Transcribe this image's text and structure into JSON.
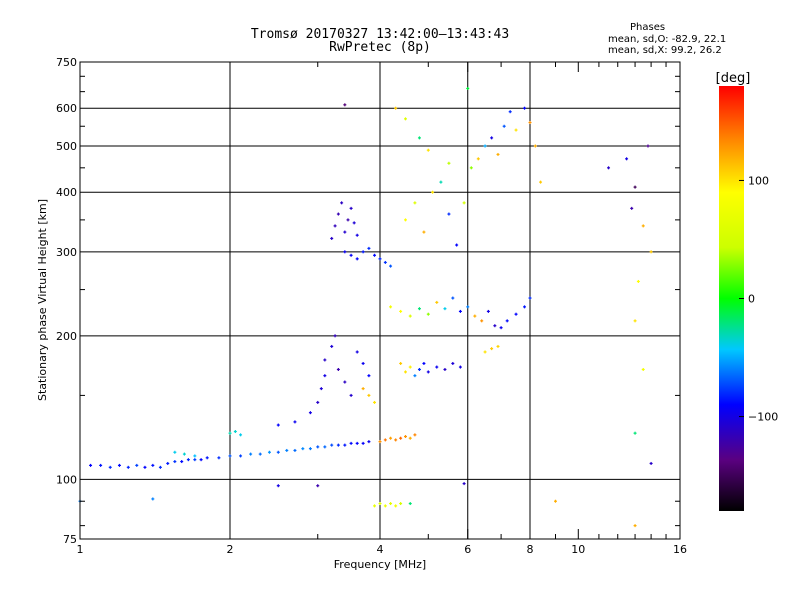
{
  "chart_data": {
    "type": "scatter",
    "title": "Tromsø 20170327 13:42:00–13:43:43",
    "subtitle": "RwPretec (8p)",
    "xlabel": "Frequency [MHz]",
    "ylabel": "Stationary phase Virtual Height [km]",
    "x_scale": "log",
    "y_scale": "log",
    "xlim": [
      1,
      16
    ],
    "ylim": [
      75,
      750
    ],
    "x_ticks": [
      1,
      2,
      4,
      6,
      8,
      10,
      16
    ],
    "x_tick_labels": [
      "1",
      "2",
      "4",
      "6",
      "8",
      "10",
      "16"
    ],
    "y_ticks": [
      75,
      100,
      200,
      300,
      400,
      500,
      600,
      750
    ],
    "y_tick_labels": [
      "75",
      "100",
      "200",
      "300",
      "400",
      "500",
      "600",
      "750"
    ],
    "grid": true,
    "stats": {
      "heading": "Phases",
      "line1": "mean, sd,O: -82.9, 22.1",
      "line2": "mean, sd,X:  99.2, 26.2"
    },
    "colorbar": {
      "label": "[deg]",
      "range": [
        -180,
        180
      ],
      "ticks": [
        -100,
        0,
        100
      ],
      "tick_labels": [
        "−100",
        "0",
        "100"
      ]
    },
    "series": [
      {
        "values": [
          {
            "x": 1.05,
            "y": 107,
            "phase": -90
          },
          {
            "x": 1.1,
            "y": 107,
            "phase": -85
          },
          {
            "x": 1.15,
            "y": 106,
            "phase": -80
          },
          {
            "x": 1.2,
            "y": 107,
            "phase": -88
          },
          {
            "x": 1.25,
            "y": 106,
            "phase": -82
          },
          {
            "x": 1.3,
            "y": 107,
            "phase": -75
          },
          {
            "x": 1.35,
            "y": 106,
            "phase": -90
          },
          {
            "x": 1.4,
            "y": 107,
            "phase": -86
          },
          {
            "x": 1.45,
            "y": 106,
            "phase": -80
          },
          {
            "x": 1.5,
            "y": 108,
            "phase": -84
          },
          {
            "x": 1.55,
            "y": 109,
            "phase": -78
          },
          {
            "x": 1.6,
            "y": 109,
            "phase": -88
          },
          {
            "x": 1.65,
            "y": 110,
            "phase": -82
          },
          {
            "x": 1.7,
            "y": 110,
            "phase": -76
          },
          {
            "x": 1.75,
            "y": 110,
            "phase": -90
          },
          {
            "x": 1.8,
            "y": 111,
            "phase": -85
          },
          {
            "x": 1.9,
            "y": 111,
            "phase": -80
          },
          {
            "x": 2.0,
            "y": 112,
            "phase": -70
          },
          {
            "x": 2.1,
            "y": 112,
            "phase": -75
          },
          {
            "x": 2.2,
            "y": 113,
            "phase": -60
          },
          {
            "x": 2.3,
            "y": 113,
            "phase": -65
          },
          {
            "x": 2.4,
            "y": 114,
            "phase": -55
          },
          {
            "x": 2.5,
            "y": 114,
            "phase": -70
          },
          {
            "x": 2.6,
            "y": 115,
            "phase": -60
          },
          {
            "x": 2.7,
            "y": 115,
            "phase": -65
          },
          {
            "x": 2.8,
            "y": 116,
            "phase": -58
          },
          {
            "x": 2.9,
            "y": 116,
            "phase": -62
          },
          {
            "x": 3.0,
            "y": 117,
            "phase": -70
          },
          {
            "x": 3.1,
            "y": 117,
            "phase": -66
          },
          {
            "x": 3.2,
            "y": 118,
            "phase": -72
          },
          {
            "x": 3.3,
            "y": 118,
            "phase": -80
          },
          {
            "x": 3.4,
            "y": 118,
            "phase": -85
          },
          {
            "x": 3.5,
            "y": 119,
            "phase": -88
          },
          {
            "x": 3.6,
            "y": 119,
            "phase": -90
          },
          {
            "x": 3.7,
            "y": 119,
            "phase": -92
          },
          {
            "x": 3.8,
            "y": 120,
            "phase": -95
          },
          {
            "x": 1.55,
            "y": 114,
            "phase": -40
          },
          {
            "x": 1.62,
            "y": 113,
            "phase": -35
          },
          {
            "x": 1.7,
            "y": 112,
            "phase": -45
          },
          {
            "x": 2.0,
            "y": 125,
            "phase": -30
          },
          {
            "x": 2.05,
            "y": 126,
            "phase": -35
          },
          {
            "x": 2.1,
            "y": 124,
            "phase": -40
          },
          {
            "x": 2.5,
            "y": 130,
            "phase": -90
          },
          {
            "x": 2.7,
            "y": 132,
            "phase": -95
          },
          {
            "x": 2.9,
            "y": 138,
            "phase": -100
          },
          {
            "x": 3.0,
            "y": 145,
            "phase": -110
          },
          {
            "x": 3.05,
            "y": 155,
            "phase": -105
          },
          {
            "x": 3.1,
            "y": 165,
            "phase": -100
          },
          {
            "x": 3.1,
            "y": 178,
            "phase": -110
          },
          {
            "x": 3.2,
            "y": 190,
            "phase": -105
          },
          {
            "x": 3.25,
            "y": 200,
            "phase": -115
          },
          {
            "x": 3.3,
            "y": 170,
            "phase": -120
          },
          {
            "x": 3.4,
            "y": 160,
            "phase": -112
          },
          {
            "x": 3.5,
            "y": 150,
            "phase": -108
          },
          {
            "x": 3.6,
            "y": 185,
            "phase": -100
          },
          {
            "x": 3.7,
            "y": 175,
            "phase": -95
          },
          {
            "x": 3.8,
            "y": 165,
            "phase": -90
          },
          {
            "x": 3.2,
            "y": 320,
            "phase": -110
          },
          {
            "x": 3.25,
            "y": 340,
            "phase": -115
          },
          {
            "x": 3.3,
            "y": 360,
            "phase": -118
          },
          {
            "x": 3.35,
            "y": 380,
            "phase": -112
          },
          {
            "x": 3.4,
            "y": 330,
            "phase": -108
          },
          {
            "x": 3.45,
            "y": 350,
            "phase": -120
          },
          {
            "x": 3.5,
            "y": 370,
            "phase": -110
          },
          {
            "x": 3.55,
            "y": 345,
            "phase": -105
          },
          {
            "x": 3.6,
            "y": 325,
            "phase": -100
          },
          {
            "x": 3.4,
            "y": 300,
            "phase": -95
          },
          {
            "x": 3.5,
            "y": 295,
            "phase": -92
          },
          {
            "x": 3.6,
            "y": 290,
            "phase": -90
          },
          {
            "x": 3.7,
            "y": 300,
            "phase": -85
          },
          {
            "x": 3.8,
            "y": 305,
            "phase": -80
          },
          {
            "x": 3.9,
            "y": 295,
            "phase": -88
          },
          {
            "x": 4.0,
            "y": 290,
            "phase": -82
          },
          {
            "x": 4.1,
            "y": 285,
            "phase": -78
          },
          {
            "x": 4.2,
            "y": 280,
            "phase": -70
          },
          {
            "x": 3.7,
            "y": 155,
            "phase": 120
          },
          {
            "x": 3.8,
            "y": 150,
            "phase": 110
          },
          {
            "x": 3.9,
            "y": 145,
            "phase": 100
          },
          {
            "x": 4.0,
            "y": 120,
            "phase": 130
          },
          {
            "x": 4.1,
            "y": 121,
            "phase": 140
          },
          {
            "x": 4.2,
            "y": 122,
            "phase": 125
          },
          {
            "x": 4.3,
            "y": 121,
            "phase": 135
          },
          {
            "x": 4.4,
            "y": 122,
            "phase": 145
          },
          {
            "x": 4.5,
            "y": 123,
            "phase": 130
          },
          {
            "x": 4.6,
            "y": 122,
            "phase": 120
          },
          {
            "x": 4.7,
            "y": 124,
            "phase": 135
          },
          {
            "x": 3.9,
            "y": 88,
            "phase": 70
          },
          {
            "x": 4.0,
            "y": 89,
            "phase": 60
          },
          {
            "x": 4.1,
            "y": 88,
            "phase": 75
          },
          {
            "x": 4.2,
            "y": 89,
            "phase": 65
          },
          {
            "x": 4.3,
            "y": 88,
            "phase": 80
          },
          {
            "x": 4.4,
            "y": 89,
            "phase": 55
          },
          {
            "x": 4.6,
            "y": 89,
            "phase": -20
          },
          {
            "x": 4.4,
            "y": 175,
            "phase": 110
          },
          {
            "x": 4.5,
            "y": 168,
            "phase": 100
          },
          {
            "x": 4.6,
            "y": 172,
            "phase": 95
          },
          {
            "x": 4.7,
            "y": 165,
            "phase": -60
          },
          {
            "x": 4.8,
            "y": 170,
            "phase": -80
          },
          {
            "x": 4.9,
            "y": 175,
            "phase": -90
          },
          {
            "x": 5.0,
            "y": 168,
            "phase": -100
          },
          {
            "x": 5.2,
            "y": 172,
            "phase": -95
          },
          {
            "x": 5.4,
            "y": 170,
            "phase": -110
          },
          {
            "x": 5.6,
            "y": 175,
            "phase": -105
          },
          {
            "x": 5.8,
            "y": 172,
            "phase": -100
          },
          {
            "x": 4.2,
            "y": 230,
            "phase": 80
          },
          {
            "x": 4.4,
            "y": 225,
            "phase": 90
          },
          {
            "x": 4.6,
            "y": 220,
            "phase": 60
          },
          {
            "x": 4.8,
            "y": 228,
            "phase": -20
          },
          {
            "x": 5.0,
            "y": 222,
            "phase": 30
          },
          {
            "x": 5.2,
            "y": 235,
            "phase": 110
          },
          {
            "x": 5.4,
            "y": 228,
            "phase": -40
          },
          {
            "x": 5.6,
            "y": 240,
            "phase": -70
          },
          {
            "x": 5.8,
            "y": 225,
            "phase": -90
          },
          {
            "x": 6.0,
            "y": 230,
            "phase": -60
          },
          {
            "x": 6.2,
            "y": 220,
            "phase": 120
          },
          {
            "x": 6.4,
            "y": 215,
            "phase": 130
          },
          {
            "x": 6.6,
            "y": 225,
            "phase": -100
          },
          {
            "x": 6.8,
            "y": 210,
            "phase": -110
          },
          {
            "x": 7.0,
            "y": 208,
            "phase": -95
          },
          {
            "x": 7.2,
            "y": 215,
            "phase": -88
          },
          {
            "x": 7.5,
            "y": 222,
            "phase": -90
          },
          {
            "x": 7.8,
            "y": 230,
            "phase": -85
          },
          {
            "x": 8.0,
            "y": 240,
            "phase": -80
          },
          {
            "x": 6.5,
            "y": 185,
            "phase": 100
          },
          {
            "x": 6.7,
            "y": 188,
            "phase": 110
          },
          {
            "x": 6.9,
            "y": 190,
            "phase": 105
          },
          {
            "x": 4.5,
            "y": 350,
            "phase": 90
          },
          {
            "x": 4.7,
            "y": 380,
            "phase": 60
          },
          {
            "x": 4.9,
            "y": 330,
            "phase": 120
          },
          {
            "x": 5.1,
            "y": 400,
            "phase": 100
          },
          {
            "x": 5.3,
            "y": 420,
            "phase": -30
          },
          {
            "x": 5.5,
            "y": 360,
            "phase": -80
          },
          {
            "x": 5.7,
            "y": 310,
            "phase": -90
          },
          {
            "x": 5.9,
            "y": 380,
            "phase": 50
          },
          {
            "x": 6.1,
            "y": 450,
            "phase": 30
          },
          {
            "x": 6.3,
            "y": 470,
            "phase": 110
          },
          {
            "x": 6.5,
            "y": 500,
            "phase": -50
          },
          {
            "x": 6.7,
            "y": 520,
            "phase": -100
          },
          {
            "x": 6.9,
            "y": 480,
            "phase": 120
          },
          {
            "x": 7.1,
            "y": 550,
            "phase": -70
          },
          {
            "x": 7.3,
            "y": 590,
            "phase": -80
          },
          {
            "x": 7.5,
            "y": 540,
            "phase": 100
          },
          {
            "x": 7.8,
            "y": 600,
            "phase": -90
          },
          {
            "x": 8.0,
            "y": 560,
            "phase": 130
          },
          {
            "x": 4.3,
            "y": 600,
            "phase": 110
          },
          {
            "x": 4.5,
            "y": 570,
            "phase": 60
          },
          {
            "x": 4.8,
            "y": 520,
            "phase": -20
          },
          {
            "x": 5.0,
            "y": 490,
            "phase": 100
          },
          {
            "x": 5.5,
            "y": 460,
            "phase": 40
          },
          {
            "x": 6.0,
            "y": 660,
            "phase": -10
          },
          {
            "x": 3.4,
            "y": 610,
            "phase": -140
          },
          {
            "x": 8.2,
            "y": 500,
            "phase": 120
          },
          {
            "x": 8.4,
            "y": 420,
            "phase": 110
          },
          {
            "x": 13.0,
            "y": 410,
            "phase": -150
          },
          {
            "x": 12.8,
            "y": 370,
            "phase": -120
          },
          {
            "x": 13.5,
            "y": 340,
            "phase": 120
          },
          {
            "x": 14.0,
            "y": 300,
            "phase": 110
          },
          {
            "x": 13.2,
            "y": 260,
            "phase": 90
          },
          {
            "x": 13.0,
            "y": 215,
            "phase": 100
          },
          {
            "x": 13.5,
            "y": 170,
            "phase": 80
          },
          {
            "x": 13.0,
            "y": 125,
            "phase": -20
          },
          {
            "x": 14.0,
            "y": 108,
            "phase": -110
          },
          {
            "x": 13.8,
            "y": 500,
            "phase": -130
          },
          {
            "x": 12.5,
            "y": 470,
            "phase": -100
          },
          {
            "x": 11.5,
            "y": 450,
            "phase": -110
          },
          {
            "x": 13.0,
            "y": 80,
            "phase": 120
          },
          {
            "x": 1.0,
            "y": 90,
            "phase": -60
          },
          {
            "x": 1.4,
            "y": 91,
            "phase": -60
          },
          {
            "x": 2.5,
            "y": 97,
            "phase": -100
          },
          {
            "x": 3.0,
            "y": 97,
            "phase": -120
          },
          {
            "x": 5.9,
            "y": 98,
            "phase": -110
          },
          {
            "x": 9.0,
            "y": 90,
            "phase": 120
          }
        ]
      }
    ]
  }
}
